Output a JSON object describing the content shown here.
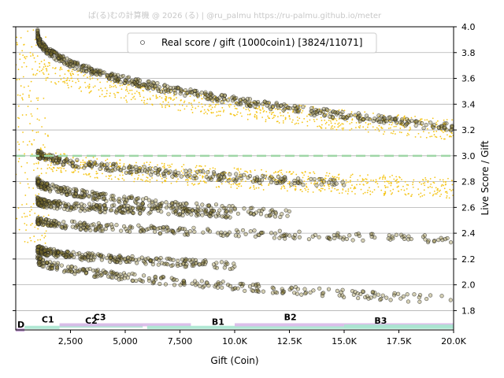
{
  "watermark": "ぱ(る)むの計算機 @ 2026 (る) | @ru_palmu  https://ru-palmu.github.io/meter",
  "chart_data": {
    "type": "scatter",
    "xlabel": "Gift (Coin)",
    "ylabel": "Live Score / Gift",
    "xlim": [
      0,
      20000
    ],
    "ylim": [
      1.65,
      4.0
    ],
    "x_ticks": [
      2500,
      5000,
      7500,
      10000,
      12500,
      15000,
      17500,
      20000
    ],
    "x_tick_labels": [
      "2,500",
      "5,000",
      "7,500",
      "10.0K",
      "12.5K",
      "15.0K",
      "17.5K",
      "20.0K"
    ],
    "y_ticks": [
      1.8,
      2.0,
      2.2,
      2.4,
      2.6,
      2.8,
      3.0,
      3.2,
      3.4,
      3.6,
      3.8,
      4.0
    ],
    "y_tick_labels": [
      "1.8",
      "2.0",
      "2.2",
      "2.4",
      "2.6",
      "2.8",
      "3.0",
      "3.2",
      "3.4",
      "3.6",
      "3.8",
      "4.0"
    ],
    "grid": "horizontal",
    "legend_position": "top-center",
    "legend_label": "Real score / gift (1000coin1) [3824/11071]",
    "reference_line": {
      "y": 3.0,
      "color": "#9fd6a6"
    },
    "series": [
      {
        "name": "Real score / gift (1000coin1) [3824/11071]",
        "marker": "open-circle",
        "color": "#000000",
        "clusters": [
          {
            "x_start": 1000,
            "x_end": 20000,
            "y_start": 3.95,
            "y_end": 3.22,
            "curve": 0.45
          },
          {
            "x_start": 1000,
            "x_end": 15000,
            "y_start": 3.02,
            "y_end": 2.78,
            "curve": 0.55
          },
          {
            "x_start": 1000,
            "x_end": 12500,
            "y_start": 2.8,
            "y_end": 2.55,
            "curve": 0.55
          },
          {
            "x_start": 1000,
            "x_end": 10000,
            "y_start": 2.65,
            "y_end": 2.55,
            "curve": 0.5
          },
          {
            "x_start": 1000,
            "x_end": 20000,
            "y_start": 2.5,
            "y_end": 2.35,
            "curve": 0.55
          },
          {
            "x_start": 1000,
            "x_end": 10000,
            "y_start": 2.28,
            "y_end": 2.15,
            "curve": 0.55
          },
          {
            "x_start": 1000,
            "x_end": 20000,
            "y_start": 2.2,
            "y_end": 1.88,
            "curve": 0.55
          }
        ]
      },
      {
        "name": "",
        "marker": "dot",
        "color": "#f5c518",
        "clusters": [
          {
            "x_start": 0,
            "x_end": 20000,
            "y_start": 3.9,
            "y_end": 3.2,
            "curve": 0.4
          },
          {
            "x_start": 1000,
            "x_end": 20000,
            "y_start": 3.0,
            "y_end": 2.75,
            "curve": 0.5
          },
          {
            "x_start": 0,
            "x_end": 1500,
            "y_start": 4.0,
            "y_end": 2.3,
            "curve": 0.7
          }
        ]
      }
    ],
    "bands": [
      {
        "label": "D",
        "x_start": 0,
        "x_end": 400,
        "y": 1.65,
        "color": "#c9a0dc"
      },
      {
        "label": "C1",
        "x_start": 400,
        "x_end": 2000,
        "y": 1.67,
        "color": "#a8e6cf"
      },
      {
        "label": "C2",
        "x_start": 2000,
        "x_end": 5800,
        "y": 1.68,
        "color": "#a8e6cf"
      },
      {
        "label": "C3",
        "x_start": 2000,
        "x_end": 8000,
        "y": 1.69,
        "color": "#d8b8e8"
      },
      {
        "label": "B1",
        "x_start": 6000,
        "x_end": 20000,
        "y": 1.67,
        "color": "#a8e6cf"
      },
      {
        "label": "B2",
        "x_start": 10000,
        "x_end": 20000,
        "y": 1.69,
        "color": "#d8b8e8"
      },
      {
        "label": "B3",
        "x_start": 15000,
        "x_end": 20000,
        "y": 1.68,
        "color": "#a8e6cf"
      }
    ]
  }
}
